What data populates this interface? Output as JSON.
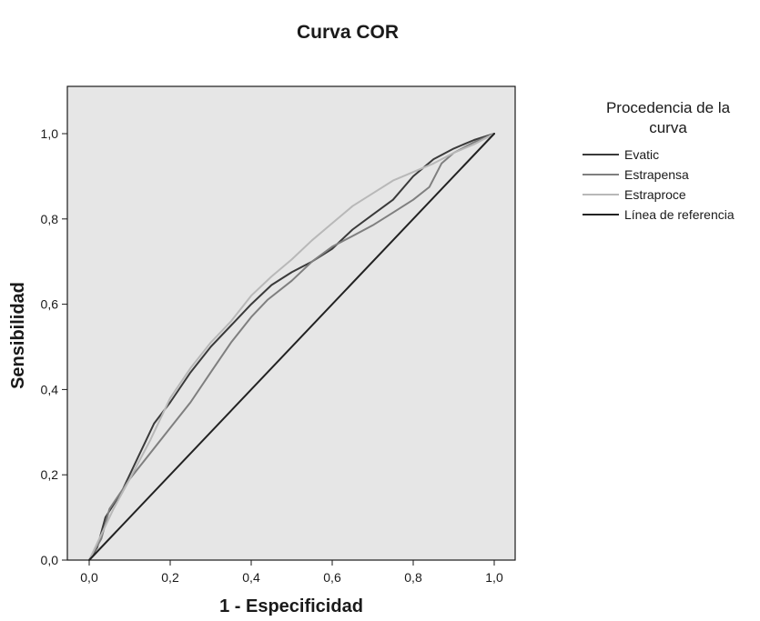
{
  "chart_data": {
    "type": "line",
    "title": "Curva COR",
    "xlabel": "1 - Especificidad",
    "ylabel": "Sensibilidad",
    "xlim": [
      0,
      1
    ],
    "ylim": [
      0,
      1
    ],
    "x_ticks": [
      "0,0",
      "0,2",
      "0,4",
      "0,6",
      "0,8",
      "1,0"
    ],
    "y_ticks": [
      "0,0",
      "0,2",
      "0,4",
      "0,6",
      "0,8",
      "1,0"
    ],
    "grid": false,
    "background_color": "#e6e6e6",
    "legend": {
      "title": "Procedencia de la curva",
      "title_lines": [
        "Procedencia de la",
        "curva"
      ],
      "position": "right"
    },
    "series": [
      {
        "name": "Evatic",
        "color": "#3a3a3a",
        "points": [
          [
            0,
            0
          ],
          [
            0.02,
            0.03
          ],
          [
            0.04,
            0.1
          ],
          [
            0.06,
            0.13
          ],
          [
            0.08,
            0.16
          ],
          [
            0.12,
            0.24
          ],
          [
            0.16,
            0.32
          ],
          [
            0.2,
            0.37
          ],
          [
            0.25,
            0.44
          ],
          [
            0.3,
            0.5
          ],
          [
            0.35,
            0.55
          ],
          [
            0.4,
            0.6
          ],
          [
            0.45,
            0.645
          ],
          [
            0.5,
            0.675
          ],
          [
            0.55,
            0.7
          ],
          [
            0.6,
            0.73
          ],
          [
            0.65,
            0.775
          ],
          [
            0.7,
            0.81
          ],
          [
            0.75,
            0.845
          ],
          [
            0.8,
            0.9
          ],
          [
            0.85,
            0.94
          ],
          [
            0.9,
            0.965
          ],
          [
            0.95,
            0.985
          ],
          [
            1,
            1
          ]
        ]
      },
      {
        "name": "Estrapensa",
        "color": "#7f7f7f",
        "points": [
          [
            0,
            0
          ],
          [
            0.03,
            0.05
          ],
          [
            0.05,
            0.12
          ],
          [
            0.1,
            0.19
          ],
          [
            0.15,
            0.25
          ],
          [
            0.2,
            0.31
          ],
          [
            0.25,
            0.37
          ],
          [
            0.3,
            0.44
          ],
          [
            0.35,
            0.51
          ],
          [
            0.4,
            0.57
          ],
          [
            0.44,
            0.61
          ],
          [
            0.5,
            0.655
          ],
          [
            0.55,
            0.7
          ],
          [
            0.6,
            0.735
          ],
          [
            0.65,
            0.76
          ],
          [
            0.7,
            0.785
          ],
          [
            0.75,
            0.815
          ],
          [
            0.8,
            0.845
          ],
          [
            0.84,
            0.875
          ],
          [
            0.87,
            0.93
          ],
          [
            0.9,
            0.955
          ],
          [
            0.95,
            0.98
          ],
          [
            1,
            1
          ]
        ]
      },
      {
        "name": "Estraproce",
        "color": "#b8b8b8",
        "points": [
          [
            0,
            0
          ],
          [
            0.03,
            0.06
          ],
          [
            0.06,
            0.12
          ],
          [
            0.1,
            0.19
          ],
          [
            0.15,
            0.28
          ],
          [
            0.2,
            0.38
          ],
          [
            0.25,
            0.45
          ],
          [
            0.3,
            0.51
          ],
          [
            0.35,
            0.56
          ],
          [
            0.4,
            0.62
          ],
          [
            0.45,
            0.665
          ],
          [
            0.5,
            0.705
          ],
          [
            0.55,
            0.75
          ],
          [
            0.6,
            0.79
          ],
          [
            0.65,
            0.83
          ],
          [
            0.7,
            0.86
          ],
          [
            0.75,
            0.89
          ],
          [
            0.8,
            0.91
          ],
          [
            0.85,
            0.93
          ],
          [
            0.9,
            0.955
          ],
          [
            0.95,
            0.975
          ],
          [
            1,
            1
          ]
        ]
      },
      {
        "name": "Línea de referencia",
        "color": "#222222",
        "points": [
          [
            0,
            0
          ],
          [
            1,
            1
          ]
        ]
      }
    ]
  }
}
